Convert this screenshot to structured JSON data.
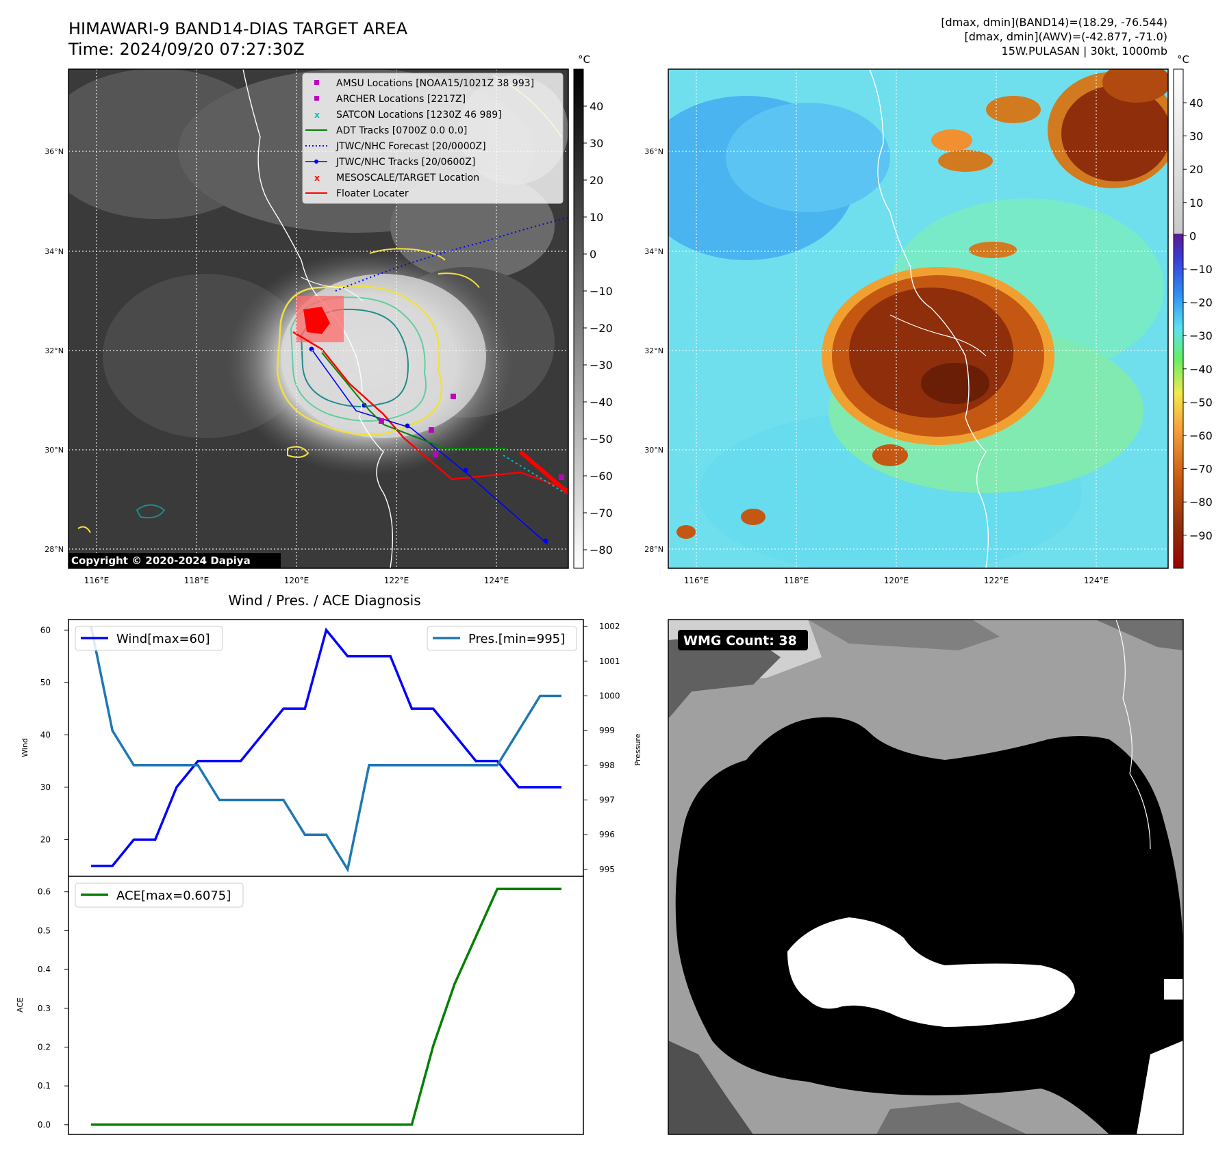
{
  "title": {
    "line1": "HIMAWARI-9 BAND14-DIAS TARGET AREA",
    "line2": "Time: 2024/09/20 07:27:30Z"
  },
  "info": {
    "line1": "[dmax, dmin](BAND14)=(18.29, -76.544)",
    "line2": "[dmax, dmin](AWV)=(-42.877, -71.0)",
    "line3": "15W.PULASAN | 30kt, 1000mb"
  },
  "copyright": "Copyright © 2020-2024 Dapiya",
  "map": {
    "lon_ticks": [
      "116°E",
      "118°E",
      "120°E",
      "122°E",
      "124°E"
    ],
    "lat_ticks": [
      "36°N",
      "34°N",
      "32°N",
      "30°N",
      "28°N"
    ],
    "legend": [
      {
        "label": "AMSU Locations [NOAA15/1021Z 38 993]",
        "marker": "square",
        "color": "#bf00bf"
      },
      {
        "label": "ARCHER Locations [2217Z]",
        "marker": "square",
        "color": "#bf00bf"
      },
      {
        "label": "SATCON Locations [1230Z 46 989]",
        "marker": "x",
        "color": "#00bfbf"
      },
      {
        "label": "ADT Tracks [0700Z 0.0 0.0]",
        "marker": "line",
        "color": "#008000"
      },
      {
        "label": "JTWC/NHC Forecast [20/0000Z]",
        "marker": "dotted",
        "color": "#0000ff"
      },
      {
        "label": "JTWC/NHC Tracks [20/0600Z]",
        "marker": "line-dot",
        "color": "#0000ff"
      },
      {
        "label": "MESOSCALE/TARGET Location",
        "marker": "x",
        "color": "#ff0000"
      },
      {
        "label": "Floater Locater",
        "marker": "line",
        "color": "#ff0000"
      }
    ]
  },
  "colorbar_gray": {
    "unit": "°C",
    "ticks": [
      "40",
      "30",
      "20",
      "10",
      "0",
      "−10",
      "−20",
      "−30",
      "−40",
      "−50",
      "−60",
      "−70",
      "−80"
    ]
  },
  "colorbar_color": {
    "unit": "°C",
    "ticks": [
      "40",
      "30",
      "20",
      "10",
      "0",
      "−10",
      "−20",
      "−30",
      "−40",
      "−50",
      "−60",
      "−70",
      "−80",
      "−90"
    ]
  },
  "wmg": {
    "label": "WMG Count: 38"
  },
  "chart_data": [
    {
      "type": "line",
      "title": "Wind / Pres. / ACE Diagnosis",
      "ylabel": "Wind",
      "y2label": "Pressure",
      "ylim": [
        13,
        62
      ],
      "y2lim": [
        994.8,
        1002.2
      ],
      "yticks": [
        20,
        30,
        40,
        50,
        60
      ],
      "y2ticks": [
        995,
        996,
        997,
        998,
        999,
        1000,
        1001,
        1002
      ],
      "series": [
        {
          "name": "Wind[max=60]",
          "color": "#0000ff",
          "axis": "left",
          "values": [
            15,
            15,
            20,
            20,
            30,
            35,
            35,
            35,
            40,
            45,
            45,
            60,
            55,
            55,
            55,
            45,
            45,
            40,
            35,
            35,
            30,
            30,
            30
          ]
        },
        {
          "name": "Pres.[min=995]",
          "color": "#1f77b4",
          "axis": "right",
          "values": [
            1002,
            999,
            998,
            998,
            998,
            998,
            997,
            997,
            997,
            997,
            996,
            996,
            995,
            998,
            998,
            998,
            998,
            998,
            998,
            998,
            999,
            1000,
            1000
          ]
        }
      ],
      "legend": [
        "upper-left",
        "upper-right"
      ]
    },
    {
      "type": "line",
      "ylabel": "ACE",
      "ylim": [
        -0.025,
        0.64
      ],
      "yticks": [
        "0.0",
        "0.1",
        "0.2",
        "0.3",
        "0.4",
        "0.5",
        "0.6"
      ],
      "series": [
        {
          "name": "ACE[max=0.6075]",
          "color": "#008000",
          "values": [
            0,
            0,
            0,
            0,
            0,
            0,
            0,
            0,
            0,
            0,
            0,
            0,
            0,
            0,
            0,
            0,
            0.2025,
            0.3625,
            0.485,
            0.6075,
            0.6075,
            0.6075,
            0.6075
          ]
        }
      ],
      "legend": "upper-left"
    }
  ]
}
